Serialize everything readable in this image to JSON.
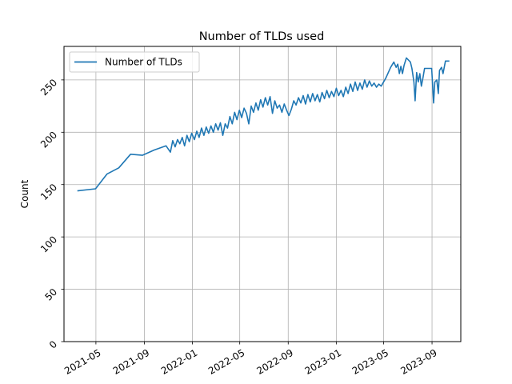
{
  "chart_data": {
    "type": "line",
    "title": "Number of TLDs used",
    "xlabel": "",
    "ylabel": "Count",
    "xlim": [
      "2021-02-09",
      "2023-11-13"
    ],
    "ylim": [
      0,
      282
    ],
    "x_ticks": [
      "2021-05",
      "2021-09",
      "2022-01",
      "2022-05",
      "2022-09",
      "2023-01",
      "2023-05",
      "2023-09"
    ],
    "y_ticks": [
      "0",
      "50",
      "100",
      "150",
      "200",
      "250"
    ],
    "grid": true,
    "legend": {
      "position": "top-left",
      "entries": [
        "Number of TLDs"
      ]
    },
    "colors": {
      "series": "#1f77b4",
      "grid": "#b0b0b0"
    },
    "series": [
      {
        "name": "Number of TLDs",
        "points": [
          [
            "2021-03-15",
            144
          ],
          [
            "2021-04-30",
            146
          ],
          [
            "2021-05-29",
            160
          ],
          [
            "2021-06-28",
            166
          ],
          [
            "2021-07-28",
            179
          ],
          [
            "2021-08-27",
            178
          ],
          [
            "2021-09-26",
            183
          ],
          [
            "2021-10-26",
            187
          ],
          [
            "2021-11-06",
            181
          ],
          [
            "2021-11-12",
            192
          ],
          [
            "2021-11-18",
            186
          ],
          [
            "2021-11-24",
            193
          ],
          [
            "2021-11-30",
            189
          ],
          [
            "2021-12-06",
            195
          ],
          [
            "2021-12-12",
            187
          ],
          [
            "2021-12-18",
            197
          ],
          [
            "2021-12-24",
            191
          ],
          [
            "2021-12-30",
            199
          ],
          [
            "2022-01-06",
            193
          ],
          [
            "2022-01-12",
            201
          ],
          [
            "2022-01-18",
            195
          ],
          [
            "2022-01-24",
            204
          ],
          [
            "2022-01-30",
            197
          ],
          [
            "2022-02-05",
            205
          ],
          [
            "2022-02-11",
            199
          ],
          [
            "2022-02-17",
            206
          ],
          [
            "2022-02-23",
            200
          ],
          [
            "2022-03-01",
            208
          ],
          [
            "2022-03-07",
            202
          ],
          [
            "2022-03-13",
            209
          ],
          [
            "2022-03-19",
            197
          ],
          [
            "2022-03-25",
            208
          ],
          [
            "2022-03-31",
            204
          ],
          [
            "2022-04-06",
            215
          ],
          [
            "2022-04-12",
            208
          ],
          [
            "2022-04-18",
            219
          ],
          [
            "2022-04-24",
            212
          ],
          [
            "2022-04-30",
            221
          ],
          [
            "2022-05-06",
            214
          ],
          [
            "2022-05-12",
            223
          ],
          [
            "2022-05-18",
            218
          ],
          [
            "2022-05-24",
            208
          ],
          [
            "2022-05-30",
            225
          ],
          [
            "2022-06-05",
            219
          ],
          [
            "2022-06-11",
            228
          ],
          [
            "2022-06-17",
            221
          ],
          [
            "2022-06-23",
            231
          ],
          [
            "2022-06-29",
            224
          ],
          [
            "2022-07-05",
            233
          ],
          [
            "2022-07-11",
            226
          ],
          [
            "2022-07-17",
            234
          ],
          [
            "2022-07-23",
            218
          ],
          [
            "2022-07-29",
            230
          ],
          [
            "2022-08-04",
            223
          ],
          [
            "2022-08-10",
            226
          ],
          [
            "2022-08-16",
            219
          ],
          [
            "2022-08-22",
            227
          ],
          [
            "2022-08-28",
            221
          ],
          [
            "2022-09-03",
            216
          ],
          [
            "2022-09-09",
            222
          ],
          [
            "2022-09-15",
            230
          ],
          [
            "2022-09-21",
            226
          ],
          [
            "2022-09-27",
            233
          ],
          [
            "2022-10-03",
            228
          ],
          [
            "2022-10-09",
            235
          ],
          [
            "2022-10-15",
            227
          ],
          [
            "2022-10-21",
            236
          ],
          [
            "2022-10-27",
            229
          ],
          [
            "2022-11-02",
            237
          ],
          [
            "2022-11-08",
            230
          ],
          [
            "2022-11-14",
            236
          ],
          [
            "2022-11-20",
            229
          ],
          [
            "2022-11-26",
            238
          ],
          [
            "2022-12-02",
            232
          ],
          [
            "2022-12-08",
            240
          ],
          [
            "2022-12-14",
            233
          ],
          [
            "2022-12-20",
            239
          ],
          [
            "2022-12-26",
            234
          ],
          [
            "2023-01-01",
            242
          ],
          [
            "2023-01-07",
            235
          ],
          [
            "2023-01-13",
            240
          ],
          [
            "2023-01-19",
            234
          ],
          [
            "2023-01-25",
            243
          ],
          [
            "2023-01-31",
            237
          ],
          [
            "2023-02-06",
            246
          ],
          [
            "2023-02-12",
            239
          ],
          [
            "2023-02-18",
            248
          ],
          [
            "2023-02-24",
            240
          ],
          [
            "2023-03-02",
            247
          ],
          [
            "2023-03-08",
            241
          ],
          [
            "2023-03-14",
            250
          ],
          [
            "2023-03-20",
            243
          ],
          [
            "2023-03-26",
            249
          ],
          [
            "2023-04-01",
            244
          ],
          [
            "2023-04-07",
            247
          ],
          [
            "2023-04-13",
            243
          ],
          [
            "2023-04-19",
            246
          ],
          [
            "2023-04-25",
            244
          ],
          [
            "2023-05-07",
            252
          ],
          [
            "2023-05-19",
            262
          ],
          [
            "2023-05-27",
            267
          ],
          [
            "2023-06-02",
            262
          ],
          [
            "2023-06-06",
            265
          ],
          [
            "2023-06-10",
            256
          ],
          [
            "2023-06-14",
            263
          ],
          [
            "2023-06-18",
            256
          ],
          [
            "2023-06-22",
            264
          ],
          [
            "2023-06-28",
            271
          ],
          [
            "2023-07-08",
            267
          ],
          [
            "2023-07-12",
            261
          ],
          [
            "2023-07-17",
            248
          ],
          [
            "2023-07-20",
            230
          ],
          [
            "2023-07-24",
            257
          ],
          [
            "2023-07-28",
            248
          ],
          [
            "2023-08-01",
            256
          ],
          [
            "2023-08-05",
            244
          ],
          [
            "2023-08-09",
            252
          ],
          [
            "2023-08-13",
            261
          ],
          [
            "2023-08-18",
            261
          ],
          [
            "2023-08-23",
            261
          ],
          [
            "2023-08-27",
            261
          ],
          [
            "2023-08-31",
            261
          ],
          [
            "2023-09-05",
            228
          ],
          [
            "2023-09-08",
            248
          ],
          [
            "2023-09-13",
            250
          ],
          [
            "2023-09-17",
            237
          ],
          [
            "2023-09-20",
            259
          ],
          [
            "2023-09-25",
            262
          ],
          [
            "2023-09-29",
            256
          ],
          [
            "2023-10-05",
            268
          ],
          [
            "2023-10-15",
            268
          ]
        ]
      }
    ]
  }
}
